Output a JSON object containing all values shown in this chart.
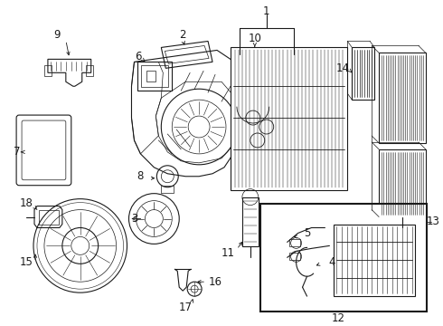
{
  "bg_color": "#ffffff",
  "line_color": "#1a1a1a",
  "fig_width": 4.9,
  "fig_height": 3.6,
  "dpi": 100,
  "label_fontsize": 8.5
}
